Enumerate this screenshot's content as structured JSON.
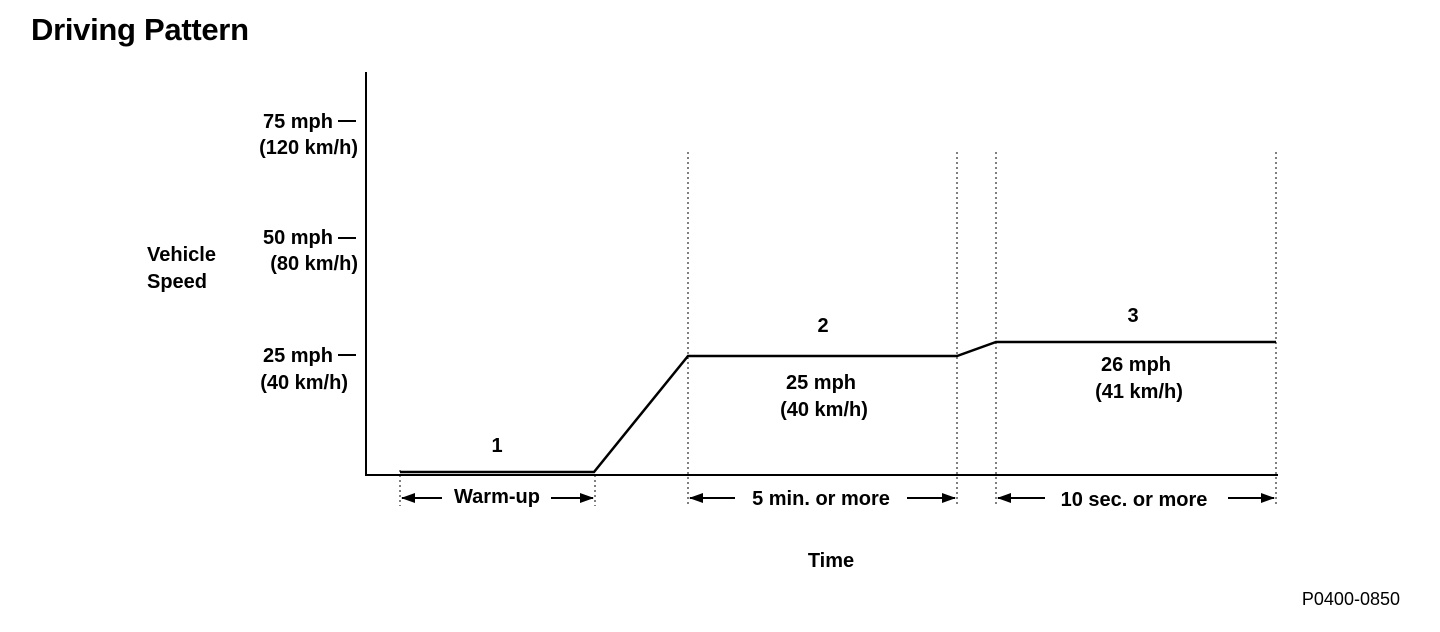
{
  "title": "Driving Pattern",
  "figure_code": "P0400-0850",
  "chart_data": {
    "type": "line",
    "ylabel": [
      "Vehicle",
      "Speed"
    ],
    "xlabel": "Time",
    "y_ticks": [
      {
        "value": 75,
        "mph": "75 mph",
        "kmh": "(120 km/h)"
      },
      {
        "value": 50,
        "mph": "50 mph",
        "kmh": "(80 km/h)"
      },
      {
        "value": 25,
        "mph": "25 mph",
        "kmh": "(40 km/h)"
      }
    ],
    "ylim": [
      0,
      75
    ],
    "phases": [
      {
        "number": "1",
        "interval": "Warm-up",
        "speed_mph": "",
        "speed_kmh": ""
      },
      {
        "number": "2",
        "interval": "5 min. or more",
        "speed_mph": "25 mph",
        "speed_kmh": "(40 km/h)"
      },
      {
        "number": "3",
        "interval": "10 sec. or more",
        "speed_mph": "26 mph",
        "speed_kmh": "(41 km/h)"
      }
    ]
  }
}
